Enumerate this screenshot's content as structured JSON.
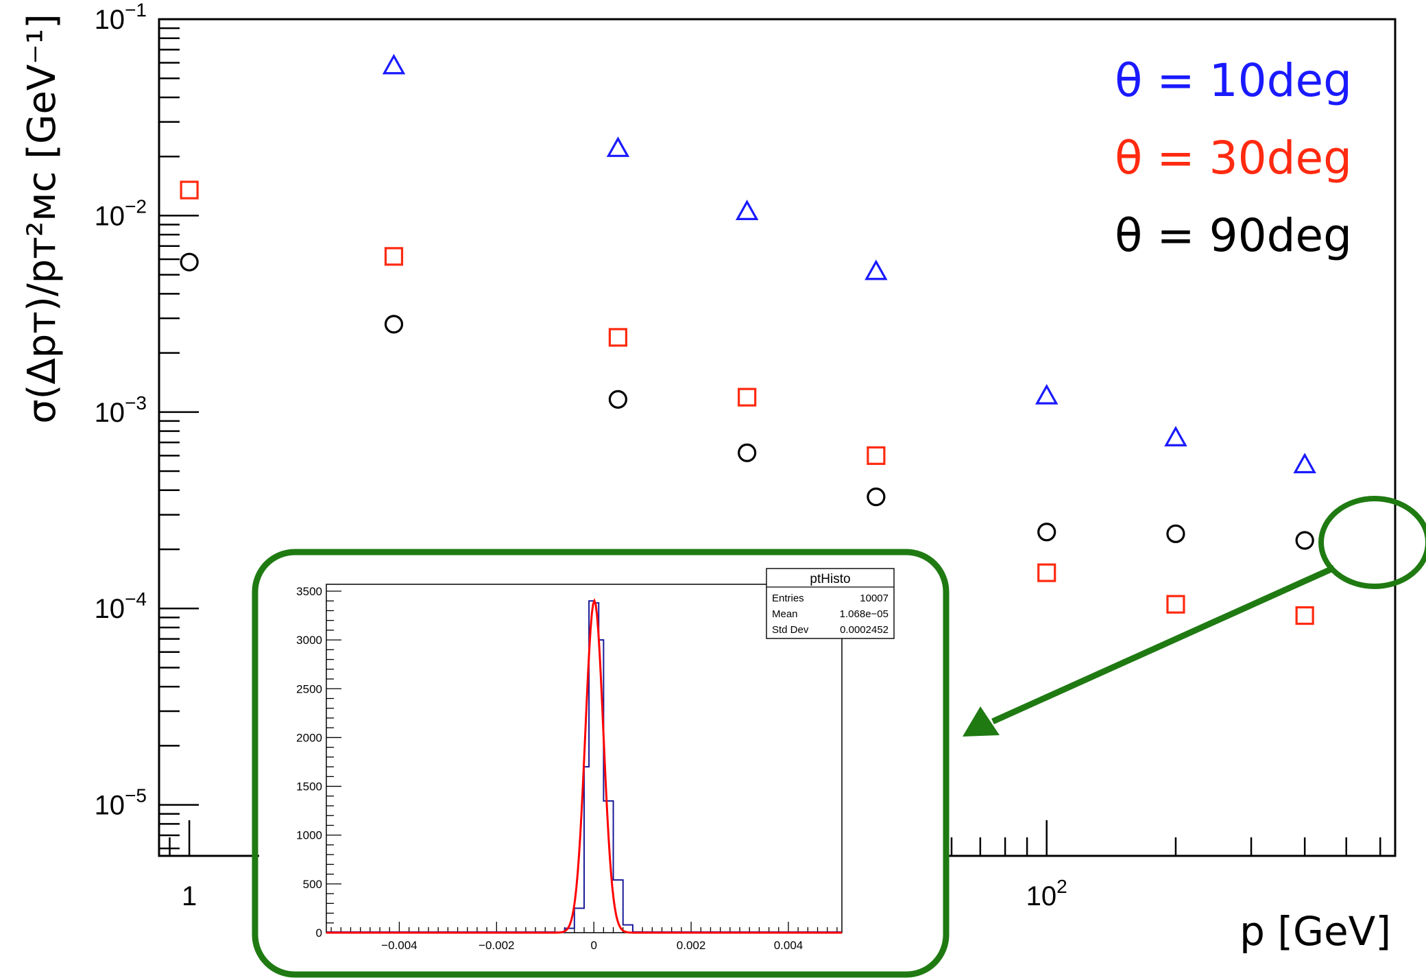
{
  "chart_data": [
    {
      "type": "scatter",
      "x_scale": "log",
      "y_scale": "log",
      "xlabel": "p [GeV]",
      "ylabel": "σ(Δpᴛ)/pᴛ²ᴍᴄ [GeV⁻¹]",
      "xlim": [
        0.85,
        650
      ],
      "ylim": [
        5.5e-06,
        0.1
      ],
      "x_tick_labels": [
        {
          "value": 1,
          "base": "1",
          "exp": ""
        },
        {
          "value": 100,
          "base": "10",
          "exp": "2"
        }
      ],
      "y_tick_labels": [
        {
          "value": 0.1,
          "base": "10",
          "exp": "−1"
        },
        {
          "value": 0.01,
          "base": "10",
          "exp": "−2"
        },
        {
          "value": 0.001,
          "base": "10",
          "exp": "−3"
        },
        {
          "value": 0.0001,
          "base": "10",
          "exp": "−4"
        },
        {
          "value": 1e-05,
          "base": "10",
          "exp": "−5"
        }
      ],
      "legend_placement": "top-right",
      "series": [
        {
          "name": "θ = 10deg",
          "color": "#1a1aff",
          "marker": "triangle",
          "x": [
            3,
            10,
            20,
            40,
            100,
            200,
            400
          ],
          "y": [
            0.058,
            0.022,
            0.0105,
            0.0052,
            0.00121,
            0.00074,
            0.00054
          ]
        },
        {
          "name": "θ = 30deg",
          "color": "#ff2a10",
          "marker": "square",
          "x": [
            1,
            3,
            10,
            20,
            40,
            100,
            200,
            400
          ],
          "y": [
            0.0135,
            0.0062,
            0.0024,
            0.00119,
            0.0006,
            0.000152,
            0.000105,
            9.2e-05
          ]
        },
        {
          "name": "θ = 90deg",
          "color": "#000000",
          "marker": "circle",
          "x": [
            1,
            3,
            10,
            20,
            40,
            100,
            200,
            400
          ],
          "y": [
            0.0058,
            0.0028,
            0.00116,
            0.00062,
            0.00037,
            0.000245,
            0.00024,
            0.000222
          ]
        }
      ],
      "x_points_hidden_note_excluded": true
    },
    {
      "type": "histogram",
      "title": "ptHisto",
      "stats": [
        {
          "label": "Entries",
          "value": "10007"
        },
        {
          "label": "Mean",
          "value": "1.068e−05"
        },
        {
          "label": "Std Dev",
          "value": "0.0002452"
        }
      ],
      "xlim": [
        -0.0055,
        0.0051
      ],
      "ylim": [
        0,
        3500
      ],
      "x_tick_labels": [
        "−0.004",
        "−0.002",
        "0",
        "0.002",
        "0.004"
      ],
      "x_tick_values": [
        -0.004,
        -0.002,
        0,
        0.002,
        0.004
      ],
      "y_tick_labels": [
        "0",
        "500",
        "1000",
        "1500",
        "2000",
        "2500",
        "3000",
        "3500"
      ],
      "y_tick_values": [
        0,
        500,
        1000,
        1500,
        2000,
        2500,
        3000,
        3500
      ],
      "bin_width": 0.0002,
      "bins": [
        {
          "x0": -0.0008,
          "y": 5
        },
        {
          "x0": -0.0006,
          "y": 45
        },
        {
          "x0": -0.0004,
          "y": 250
        },
        {
          "x0": -0.0002,
          "y": 1700
        },
        {
          "x0": -0.0001,
          "y": 3400
        },
        {
          "x0": 0.0,
          "y": 3380
        },
        {
          "x0": 0.0001,
          "y": 3000
        },
        {
          "x0": 0.0002,
          "y": 1350
        },
        {
          "x0": 0.0004,
          "y": 540
        },
        {
          "x0": 0.0006,
          "y": 80
        },
        {
          "x0": 0.0008,
          "y": 8
        }
      ],
      "fit": {
        "type": "gaussian",
        "amplitude": 3400,
        "mean": 1.068e-05,
        "sigma": 0.000185,
        "color": "#ff0000"
      },
      "histogram_color": "#1a1a99"
    }
  ],
  "annotation": {
    "highlight_color": "#1f7a12"
  }
}
